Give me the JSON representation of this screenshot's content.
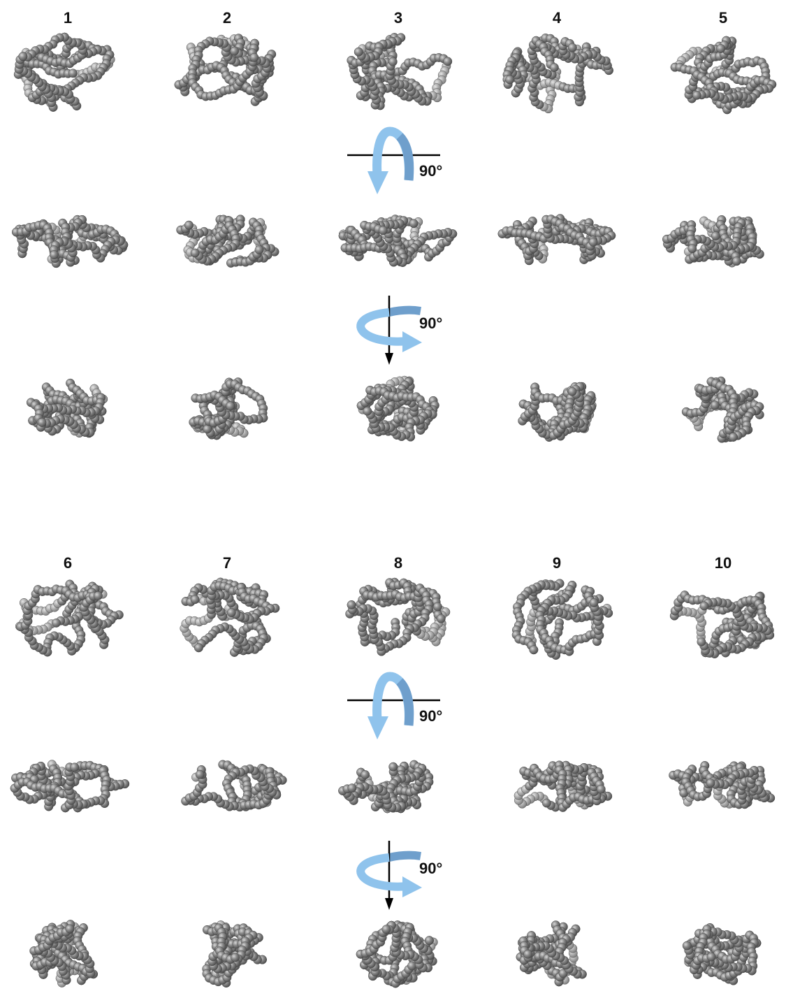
{
  "groups": [
    {
      "labels": [
        "1",
        "2",
        "3",
        "4",
        "5"
      ],
      "rotations": [
        "90°",
        "90°"
      ]
    },
    {
      "labels": [
        "6",
        "7",
        "8",
        "9",
        "10"
      ],
      "rotations": [
        "90°",
        "90°"
      ]
    }
  ]
}
